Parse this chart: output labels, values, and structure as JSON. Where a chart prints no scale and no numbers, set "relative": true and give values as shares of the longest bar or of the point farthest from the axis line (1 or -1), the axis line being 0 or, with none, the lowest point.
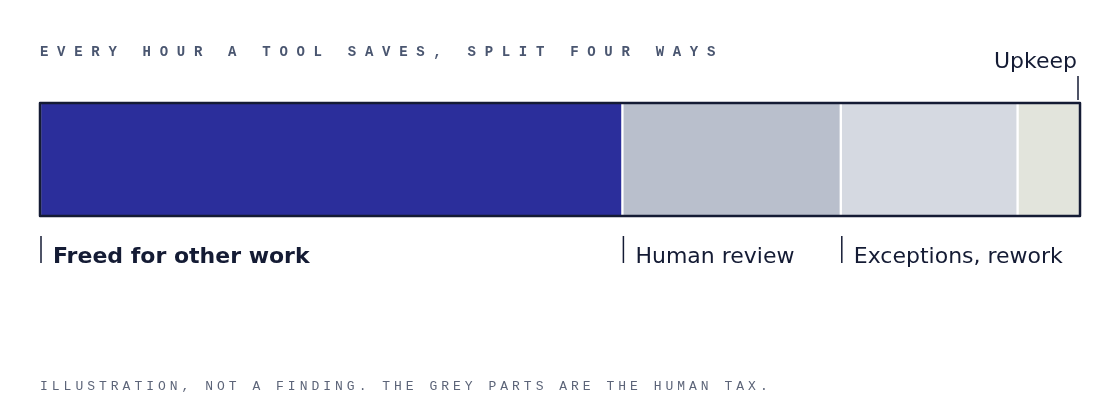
{
  "chart_data": {
    "type": "bar",
    "orientation": "horizontal",
    "stacked": true,
    "relative": true,
    "title": "EVERY HOUR A TOOL SAVES, SPLIT FOUR WAYS",
    "categories": [
      null
    ],
    "series": [
      {
        "name": "Freed for other work",
        "color": "#2b2e9b",
        "values": [
          0.56
        ]
      },
      {
        "name": "Human review",
        "color": "#b9bfcc",
        "values": [
          0.21
        ]
      },
      {
        "name": "Exceptions, rework",
        "color": "#d5d9e1",
        "values": [
          0.17
        ]
      },
      {
        "name": "Upkeep",
        "color": "#e2e4dc",
        "values": [
          0.06
        ]
      }
    ],
    "legend": false,
    "annotations": [
      "ILLUSTRATION, NOT A FINDING. THE GREY PARTS ARE THE HUMAN TAX."
    ]
  }
}
